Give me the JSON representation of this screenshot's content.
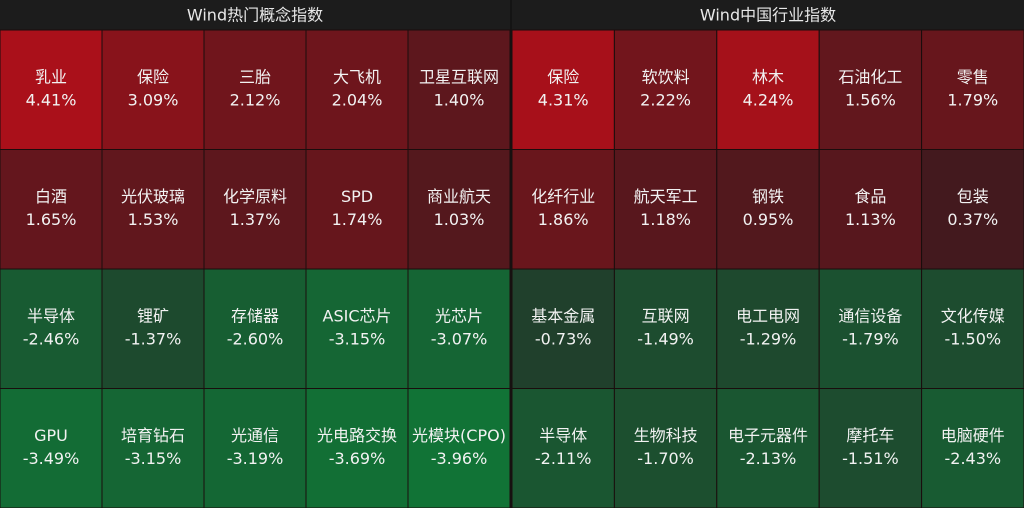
{
  "chart_data": [
    {
      "type": "heatmap",
      "title": "Wind热门概念指数",
      "categories": [
        "乳业",
        "保险",
        "三胎",
        "大飞机",
        "卫星互联网",
        "白酒",
        "光伏玻璃",
        "化学原料",
        "SPD",
        "商业航天",
        "半导体",
        "锂矿",
        "存储器",
        "ASIC芯片",
        "光芯片",
        "GPU",
        "培育钻石",
        "光通信",
        "光电路交换",
        "光模块(CPO)"
      ],
      "values": [
        4.41,
        3.09,
        2.12,
        2.04,
        1.4,
        1.65,
        1.53,
        1.37,
        1.74,
        1.03,
        -2.46,
        -1.37,
        -2.6,
        -3.15,
        -3.07,
        -3.49,
        -3.15,
        -3.19,
        -3.69,
        -3.96
      ],
      "value_labels": [
        "4.41%",
        "3.09%",
        "2.12%",
        "2.04%",
        "1.40%",
        "1.65%",
        "1.53%",
        "1.37%",
        "1.74%",
        "1.03%",
        "-2.46%",
        "-1.37%",
        "-2.60%",
        "-3.15%",
        "-3.07%",
        "-3.49%",
        "-3.15%",
        "-3.19%",
        "-3.69%",
        "-3.96%"
      ]
    },
    {
      "type": "heatmap",
      "title": "Wind中国行业指数",
      "categories": [
        "保险",
        "软饮料",
        "林木",
        "石油化工",
        "零售",
        "化纤行业",
        "航天军工",
        "钢铁",
        "食品",
        "包装",
        "基本金属",
        "互联网",
        "电工电网",
        "通信设备",
        "文化传媒",
        "半导体",
        "生物科技",
        "电子元器件",
        "摩托车",
        "电脑硬件"
      ],
      "values": [
        4.31,
        2.22,
        4.24,
        1.56,
        1.79,
        1.86,
        1.18,
        0.95,
        1.13,
        0.37,
        -0.73,
        -1.49,
        -1.29,
        -1.79,
        -1.5,
        -2.11,
        -1.7,
        -2.13,
        -1.51,
        -2.43
      ],
      "value_labels": [
        "4.31%",
        "2.22%",
        "4.24%",
        "1.56%",
        "1.79%",
        "1.86%",
        "1.18%",
        "0.95%",
        "1.13%",
        "0.37%",
        "-0.73%",
        "-1.49%",
        "-1.29%",
        "-1.79%",
        "-1.50%",
        "-2.11%",
        "-1.70%",
        "-2.13%",
        "-1.51%",
        "-2.43%"
      ]
    }
  ]
}
